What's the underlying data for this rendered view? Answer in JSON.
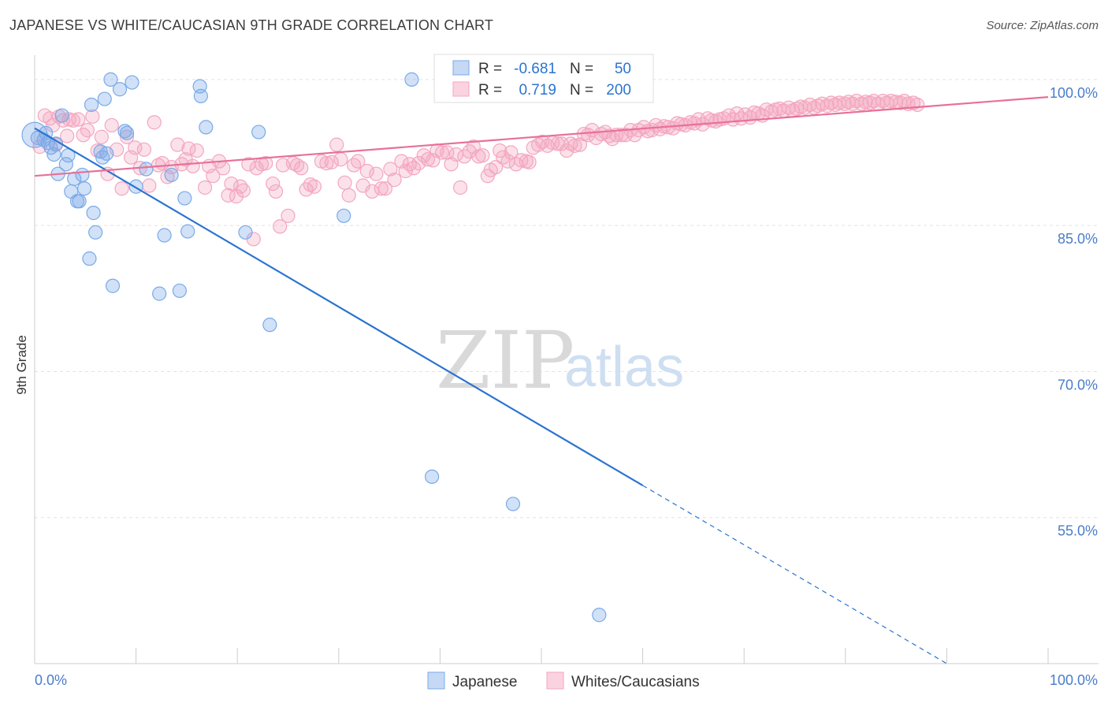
{
  "title": "JAPANESE VS WHITE/CAUCASIAN 9TH GRADE CORRELATION CHART",
  "source": "Source: ZipAtlas.com",
  "colors": {
    "japanese": "#7aaae8",
    "japanese_line": "#2a74d0",
    "white": "#f4a6bf",
    "white_line": "#e8709a",
    "tick_text": "#4a7cc9"
  },
  "chart_data": {
    "type": "scatter",
    "title": "JAPANESE VS WHITE/CAUCASIAN 9TH GRADE CORRELATION CHART",
    "xlabel": "",
    "ylabel": "9th Grade",
    "xlim": [
      0,
      100
    ],
    "ylim": [
      40,
      102.5
    ],
    "x_tick_labels": [
      "0.0%",
      "100.0%"
    ],
    "y_ticks": [
      {
        "value": 100,
        "label": "100.0%"
      },
      {
        "value": 85,
        "label": "85.0%"
      },
      {
        "value": 70,
        "label": "70.0%"
      },
      {
        "value": 55,
        "label": "55.0%"
      }
    ],
    "grid": true,
    "legend_top": [
      {
        "r_label": "R =",
        "r_value": "-0.681",
        "n_label": "N =",
        "n_value": "50"
      },
      {
        "r_label": "R =",
        "r_value": "0.719",
        "n_label": "N =",
        "n_value": "200"
      }
    ],
    "legend_bottom": [
      "Japanese",
      "Whites/Caucasians"
    ],
    "watermark": {
      "zip": "ZIP",
      "atlas": "atlas"
    },
    "series": [
      {
        "name": "Japanese",
        "trend": {
          "x0": 0,
          "y0": 95.0,
          "x1": 60,
          "y1": 58.3,
          "dash_x1": 90,
          "dash_y1": 40.0
        },
        "points": [
          [
            0.3,
            94.0
          ],
          [
            0.9,
            93.8
          ],
          [
            1.3,
            93.5
          ],
          [
            1.6,
            93.0
          ],
          [
            1.9,
            92.3
          ],
          [
            2.3,
            90.3
          ],
          [
            2.7,
            96.3
          ],
          [
            3.1,
            91.3
          ],
          [
            3.3,
            92.2
          ],
          [
            3.6,
            88.5
          ],
          [
            3.9,
            89.8
          ],
          [
            4.2,
            87.5
          ],
          [
            4.4,
            87.5
          ],
          [
            4.7,
            90.2
          ],
          [
            4.9,
            88.8
          ],
          [
            5.4,
            81.6
          ],
          [
            5.6,
            97.4
          ],
          [
            5.8,
            86.3
          ],
          [
            6.0,
            84.3
          ],
          [
            6.7,
            92.0
          ],
          [
            6.9,
            98.0
          ],
          [
            7.1,
            92.4
          ],
          [
            7.5,
            100.0
          ],
          [
            7.7,
            78.8
          ],
          [
            8.4,
            99.0
          ],
          [
            8.9,
            94.7
          ],
          [
            9.1,
            94.5
          ],
          [
            9.6,
            99.7
          ],
          [
            10.0,
            89.0
          ],
          [
            11.0,
            90.8
          ],
          [
            12.3,
            78.0
          ],
          [
            12.8,
            84.0
          ],
          [
            13.5,
            90.2
          ],
          [
            14.3,
            78.3
          ],
          [
            14.8,
            87.8
          ],
          [
            15.1,
            84.4
          ],
          [
            16.3,
            99.3
          ],
          [
            16.4,
            98.3
          ],
          [
            16.9,
            95.1
          ],
          [
            20.8,
            84.3
          ],
          [
            22.1,
            94.6
          ],
          [
            23.2,
            74.8
          ],
          [
            30.5,
            86.0
          ],
          [
            37.2,
            100.0
          ],
          [
            39.2,
            59.2
          ],
          [
            47.2,
            56.4
          ],
          [
            55.7,
            45.0
          ],
          [
            1.1,
            94.5
          ],
          [
            2.1,
            93.4
          ],
          [
            6.5,
            92.6
          ]
        ]
      },
      {
        "name": "Whites/Caucasians",
        "trend": {
          "x0": 0,
          "y0": 90.1,
          "x1": 100,
          "y1": 98.2
        },
        "points": [
          [
            0.5,
            93.1
          ],
          [
            1.0,
            96.3
          ],
          [
            1.5,
            96.0
          ],
          [
            1.8,
            95.3
          ],
          [
            2.1,
            93.3
          ],
          [
            2.4,
            96.2
          ],
          [
            2.8,
            95.8
          ],
          [
            3.2,
            94.2
          ],
          [
            3.4,
            95.9
          ],
          [
            3.8,
            95.8
          ],
          [
            4.3,
            95.9
          ],
          [
            4.8,
            94.3
          ],
          [
            5.2,
            94.8
          ],
          [
            5.7,
            96.2
          ],
          [
            6.2,
            92.7
          ],
          [
            6.6,
            94.1
          ],
          [
            7.2,
            90.3
          ],
          [
            7.6,
            95.3
          ],
          [
            8.1,
            92.8
          ],
          [
            8.6,
            88.8
          ],
          [
            9.1,
            94.1
          ],
          [
            9.5,
            92.0
          ],
          [
            9.9,
            93.0
          ],
          [
            10.4,
            90.9
          ],
          [
            10.8,
            92.8
          ],
          [
            11.3,
            89.1
          ],
          [
            11.8,
            95.6
          ],
          [
            12.2,
            91.2
          ],
          [
            12.6,
            91.4
          ],
          [
            13.1,
            90.0
          ],
          [
            13.5,
            91.0
          ],
          [
            14.1,
            93.3
          ],
          [
            14.5,
            91.3
          ],
          [
            14.9,
            91.8
          ],
          [
            15.2,
            92.9
          ],
          [
            15.6,
            91.1
          ],
          [
            16.0,
            92.7
          ],
          [
            16.8,
            88.9
          ],
          [
            17.2,
            91.1
          ],
          [
            17.6,
            90.1
          ],
          [
            18.2,
            91.6
          ],
          [
            18.6,
            90.9
          ],
          [
            19.1,
            88.1
          ],
          [
            19.4,
            89.3
          ],
          [
            19.9,
            88.0
          ],
          [
            20.3,
            89.0
          ],
          [
            20.6,
            88.6
          ],
          [
            21.1,
            91.3
          ],
          [
            21.6,
            83.6
          ],
          [
            21.9,
            90.9
          ],
          [
            22.4,
            91.3
          ],
          [
            22.8,
            91.4
          ],
          [
            23.5,
            89.3
          ],
          [
            23.8,
            88.5
          ],
          [
            24.2,
            84.9
          ],
          [
            24.5,
            91.2
          ],
          [
            25.0,
            86.0
          ],
          [
            25.5,
            91.4
          ],
          [
            25.9,
            91.2
          ],
          [
            26.3,
            90.9
          ],
          [
            26.8,
            88.7
          ],
          [
            27.2,
            89.2
          ],
          [
            27.6,
            89.0
          ],
          [
            28.3,
            91.6
          ],
          [
            28.8,
            91.4
          ],
          [
            29.3,
            91.5
          ],
          [
            29.8,
            93.3
          ],
          [
            30.2,
            91.8
          ],
          [
            30.6,
            89.4
          ],
          [
            31.0,
            88.1
          ],
          [
            31.5,
            91.2
          ],
          [
            31.9,
            91.6
          ],
          [
            32.4,
            89.1
          ],
          [
            32.8,
            90.6
          ],
          [
            33.3,
            88.5
          ],
          [
            33.7,
            90.3
          ],
          [
            34.2,
            88.8
          ],
          [
            34.6,
            88.8
          ],
          [
            35.1,
            90.8
          ],
          [
            35.5,
            89.7
          ],
          [
            36.2,
            91.6
          ],
          [
            36.6,
            90.6
          ],
          [
            37.0,
            91.3
          ],
          [
            37.4,
            90.9
          ],
          [
            37.9,
            91.4
          ],
          [
            38.4,
            92.2
          ],
          [
            38.8,
            91.8
          ],
          [
            39.3,
            91.7
          ],
          [
            39.7,
            92.7
          ],
          [
            40.2,
            92.5
          ],
          [
            40.7,
            92.5
          ],
          [
            41.1,
            91.3
          ],
          [
            41.6,
            92.3
          ],
          [
            42.0,
            88.9
          ],
          [
            42.4,
            92.1
          ],
          [
            42.9,
            92.6
          ],
          [
            43.3,
            93.1
          ],
          [
            43.8,
            92.1
          ],
          [
            44.2,
            92.2
          ],
          [
            44.7,
            90.1
          ],
          [
            45.0,
            90.7
          ],
          [
            45.5,
            91.0
          ],
          [
            45.9,
            92.7
          ],
          [
            46.2,
            92.0
          ],
          [
            46.7,
            91.6
          ],
          [
            47.0,
            92.5
          ],
          [
            47.5,
            91.3
          ],
          [
            48.0,
            91.7
          ],
          [
            48.5,
            91.6
          ],
          [
            48.8,
            91.5
          ],
          [
            49.2,
            93.0
          ],
          [
            49.7,
            93.3
          ],
          [
            50.1,
            93.6
          ],
          [
            50.6,
            93.2
          ],
          [
            51.1,
            93.5
          ],
          [
            51.6,
            93.4
          ],
          [
            52.0,
            93.4
          ],
          [
            52.5,
            92.7
          ],
          [
            52.9,
            93.4
          ],
          [
            53.3,
            93.2
          ],
          [
            53.8,
            93.3
          ],
          [
            54.2,
            94.4
          ],
          [
            54.6,
            94.3
          ],
          [
            55.0,
            94.8
          ],
          [
            55.4,
            94.0
          ],
          [
            55.9,
            94.4
          ],
          [
            56.3,
            94.6
          ],
          [
            56.7,
            94.2
          ],
          [
            57.0,
            93.9
          ],
          [
            57.4,
            94.3
          ],
          [
            57.9,
            94.3
          ],
          [
            58.3,
            94.3
          ],
          [
            58.8,
            94.8
          ],
          [
            59.2,
            94.3
          ],
          [
            59.6,
            94.8
          ],
          [
            60.1,
            95.1
          ],
          [
            60.5,
            94.7
          ],
          [
            60.9,
            94.8
          ],
          [
            61.3,
            95.3
          ],
          [
            61.7,
            94.9
          ],
          [
            62.1,
            95.2
          ],
          [
            62.5,
            95.1
          ],
          [
            63.0,
            95.0
          ],
          [
            63.4,
            95.5
          ],
          [
            63.8,
            95.4
          ],
          [
            64.2,
            95.3
          ],
          [
            64.7,
            95.6
          ],
          [
            65.1,
            95.5
          ],
          [
            65.5,
            95.9
          ],
          [
            65.9,
            95.4
          ],
          [
            66.4,
            96.0
          ],
          [
            66.8,
            95.8
          ],
          [
            67.2,
            95.7
          ],
          [
            67.6,
            95.9
          ],
          [
            68.0,
            96.0
          ],
          [
            68.5,
            96.3
          ],
          [
            68.9,
            95.9
          ],
          [
            69.3,
            96.5
          ],
          [
            69.7,
            96.0
          ],
          [
            70.1,
            96.4
          ],
          [
            70.6,
            96.1
          ],
          [
            71.0,
            96.6
          ],
          [
            71.4,
            96.5
          ],
          [
            71.8,
            96.3
          ],
          [
            72.2,
            96.9
          ],
          [
            72.7,
            96.7
          ],
          [
            73.1,
            96.9
          ],
          [
            73.5,
            97.0
          ],
          [
            73.9,
            96.8
          ],
          [
            74.4,
            97.1
          ],
          [
            74.8,
            96.8
          ],
          [
            75.2,
            97.0
          ],
          [
            75.6,
            97.2
          ],
          [
            76.0,
            97.1
          ],
          [
            76.5,
            97.4
          ],
          [
            76.9,
            97.1
          ],
          [
            77.3,
            97.3
          ],
          [
            77.7,
            97.5
          ],
          [
            78.2,
            97.3
          ],
          [
            78.6,
            97.6
          ],
          [
            79.0,
            97.4
          ],
          [
            79.4,
            97.6
          ],
          [
            79.9,
            97.5
          ],
          [
            80.3,
            97.7
          ],
          [
            80.7,
            97.5
          ],
          [
            81.1,
            97.8
          ],
          [
            81.6,
            97.5
          ],
          [
            82.0,
            97.7
          ],
          [
            82.4,
            97.6
          ],
          [
            82.8,
            97.8
          ],
          [
            83.2,
            97.5
          ],
          [
            83.7,
            97.8
          ],
          [
            84.1,
            97.6
          ],
          [
            84.5,
            97.8
          ],
          [
            85.0,
            97.7
          ],
          [
            85.4,
            97.6
          ],
          [
            85.8,
            97.8
          ],
          [
            86.2,
            97.5
          ],
          [
            86.7,
            97.6
          ],
          [
            87.1,
            97.4
          ]
        ]
      }
    ]
  }
}
